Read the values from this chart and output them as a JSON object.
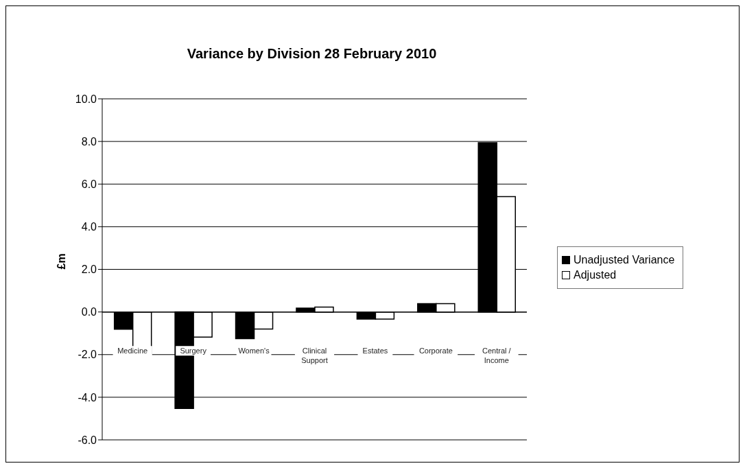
{
  "chart_data": {
    "type": "bar",
    "title": "Variance by Division 28 February 2010",
    "ylabel": "£m",
    "categories": [
      "Medicine",
      "Surgery",
      "Women's",
      "Clinical Support",
      "Estates",
      "Corporate",
      "Central / Income"
    ],
    "series": [
      {
        "name": "Unadjusted Variance",
        "color": "#000000",
        "values": [
          -0.81,
          -4.53,
          -1.25,
          0.18,
          -0.33,
          0.39,
          7.94
        ]
      },
      {
        "name": "Adjusted",
        "color": "#ffffff",
        "values": [
          -2.0,
          -1.18,
          -0.8,
          0.23,
          -0.33,
          0.39,
          5.41
        ]
      }
    ],
    "ylim": [
      -6,
      10
    ],
    "yticks": [
      {
        "value": -6,
        "label": "-6.0"
      },
      {
        "value": -4,
        "label": "-4.0"
      },
      {
        "value": -2,
        "label": "-2.0"
      },
      {
        "value": 0,
        "label": "0.0"
      },
      {
        "value": 2,
        "label": "2.0"
      },
      {
        "value": 4,
        "label": "4.0"
      },
      {
        "value": 6,
        "label": "6.0"
      },
      {
        "value": 8,
        "label": "8.0"
      },
      {
        "value": 10,
        "label": "10.0"
      }
    ],
    "grid": "y",
    "legend": "right"
  }
}
